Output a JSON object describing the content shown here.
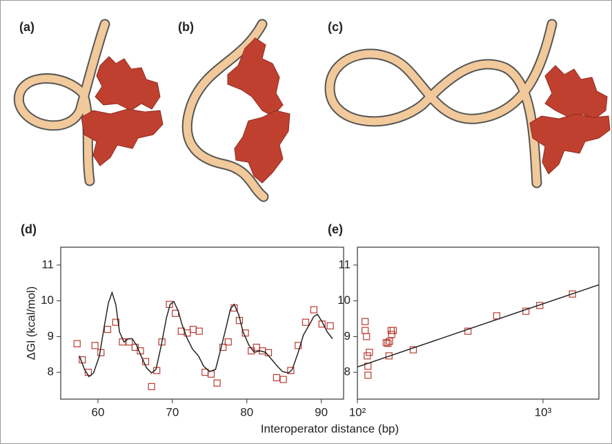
{
  "diagram_labels": [
    "(a)",
    "(b)",
    "(c)"
  ],
  "shared_xlabel": "Interoperator distance (bp)",
  "chart_data": [
    {
      "type": "scatter",
      "title": "(d)",
      "ylabel": "ΔGl (kcal/mol)",
      "xlim": [
        55,
        93
      ],
      "xticks": [
        60,
        70,
        80,
        90
      ],
      "ylim": [
        7.25,
        11.5
      ],
      "yticks": [
        8,
        9,
        10,
        11
      ],
      "log_x": false,
      "series": [
        {
          "mode": "markers",
          "color": "#b8392e",
          "x": [
            57.2,
            57.9,
            58.7,
            59.6,
            60.4,
            61.3,
            62.4,
            63.3,
            64.2,
            65.0,
            65.7,
            66.4,
            67.2,
            67.9,
            68.6,
            69.6,
            70.4,
            71.2,
            72.0,
            72.8,
            73.6,
            74.4,
            75.2,
            76.0,
            76.8,
            77.5,
            78.3,
            79.0,
            79.8,
            80.6,
            81.3,
            82.1,
            82.9,
            84.0,
            84.9,
            85.9,
            86.9,
            87.9,
            89.0,
            90.1,
            91.2
          ],
          "values": [
            8.8,
            8.35,
            8.0,
            8.75,
            8.55,
            9.2,
            9.4,
            8.85,
            8.85,
            8.7,
            8.6,
            8.3,
            7.6,
            8.05,
            8.85,
            9.9,
            9.65,
            9.15,
            9.1,
            9.2,
            9.15,
            8.0,
            7.95,
            7.7,
            8.7,
            8.85,
            9.8,
            9.45,
            9.1,
            8.6,
            8.7,
            8.6,
            8.55,
            7.85,
            7.8,
            8.05,
            8.75,
            9.4,
            9.75,
            9.35,
            9.3
          ]
        },
        {
          "mode": "line",
          "color": "#222222",
          "x": [
            57.5,
            58.2,
            58.8,
            59.4,
            60.2,
            60.8,
            61.4,
            61.9,
            62.4,
            62.9,
            63.5,
            64.1,
            64.6,
            65.2,
            65.8,
            66.5,
            67.2,
            67.8,
            68.5,
            69.2,
            69.7,
            70.2,
            70.8,
            71.3,
            72.0,
            72.7,
            73.5,
            74.2,
            75.0,
            75.8,
            76.5,
            77.3,
            77.8,
            78.3,
            78.9,
            79.5,
            80.3,
            81.0,
            81.8,
            82.5,
            83.3,
            84.1,
            84.8,
            85.6,
            86.1,
            86.9,
            87.6,
            88.4,
            89.0,
            89.5,
            90.1,
            90.8,
            91.5
          ],
          "values": [
            8.46,
            8.08,
            7.88,
            7.98,
            8.46,
            9.23,
            9.94,
            10.23,
            9.9,
            9.13,
            8.85,
            8.94,
            8.94,
            8.75,
            8.46,
            8.13,
            7.98,
            8.08,
            8.75,
            9.52,
            9.9,
            9.98,
            9.71,
            9.33,
            8.94,
            8.65,
            8.46,
            8.17,
            8.02,
            8.08,
            8.65,
            9.33,
            9.77,
            9.9,
            9.62,
            9.13,
            8.75,
            8.56,
            8.6,
            8.56,
            8.37,
            8.17,
            8.02,
            7.98,
            8.08,
            8.56,
            9.04,
            9.33,
            9.56,
            9.62,
            9.42,
            9.13,
            8.94
          ]
        }
      ]
    },
    {
      "type": "scatter",
      "title": "(e)",
      "xlim": [
        100,
        2000
      ],
      "xticks": [
        {
          "value": 100,
          "label": "10²"
        },
        {
          "value": 1000,
          "label": "10³"
        }
      ],
      "ylim": [
        7.25,
        11.5
      ],
      "yticks": [
        8,
        9,
        10,
        11
      ],
      "log_x": true,
      "series": [
        {
          "mode": "markers",
          "color": "#b8392e",
          "x": [
            110,
            110,
            112,
            113,
            114,
            114,
            116,
            143,
            146,
            149,
            148,
            152,
            153,
            156,
            200,
            394,
            563,
            809,
            960,
            1440
          ],
          "values": [
            9.42,
            9.17,
            9.0,
            8.46,
            8.17,
            7.92,
            8.56,
            8.83,
            8.81,
            8.87,
            8.46,
            9.17,
            9.06,
            9.17,
            8.63,
            9.15,
            9.58,
            9.71,
            9.87,
            10.19
          ]
        },
        {
          "mode": "line",
          "color": "#222222",
          "x": [
            100,
            2000
          ],
          "values": [
            8.15,
            10.45
          ]
        }
      ]
    }
  ]
}
